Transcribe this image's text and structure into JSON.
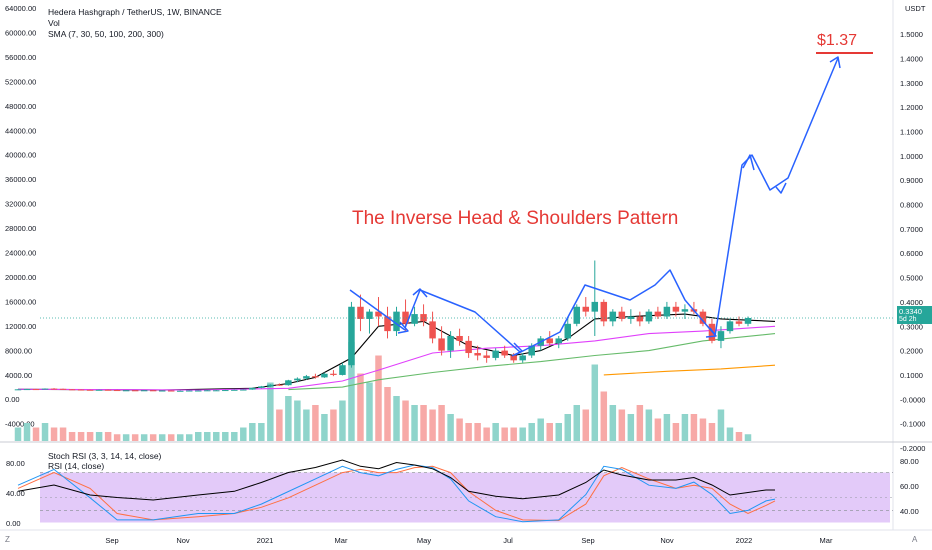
{
  "header": {
    "symbol_line": "Hedera Hashgraph / TetherUS, 1W, BINANCE",
    "volume_label": "Vol",
    "sma_label": "SMA (7, 30, 50, 100, 200, 300)",
    "stoch_label": "Stoch RSI (3, 3, 14, 14, close)",
    "rsi_label": "RSI (14, close)",
    "currency": "USDT"
  },
  "price_tag": {
    "value": "0.3340",
    "countdown": "5d 2h"
  },
  "annotations": {
    "pattern_title": "The Inverse Head & Shoulders Pattern",
    "target_label": "$1.37"
  },
  "footer": {
    "left_letter": "Z",
    "right_letter": "A"
  },
  "colors": {
    "up": "#26a69a",
    "down": "#ef5350",
    "annotation": "#e53935",
    "arrows": "#2962ff",
    "sma_black": "#000000",
    "sma_pink": "#e040fb",
    "sma_green": "#66bb6a",
    "sma_orange": "#ff9800",
    "rsi_band": "#d1a6f5",
    "stoch_k": "#2196f3",
    "stoch_d": "#ff7043"
  },
  "chart_data": {
    "type": "candlestick",
    "right_axis": {
      "scale": "linear",
      "ticks": [
        "1.5000",
        "1.4000",
        "1.3000",
        "1.2000",
        "1.1000",
        "1.0000",
        "0.9000",
        "0.8000",
        "0.7000",
        "0.6000",
        "0.5000",
        "0.4000",
        "0.3000",
        "0.2000",
        "0.1000",
        "-0.0000",
        "-0.1000",
        "-0.2000"
      ]
    },
    "left_axis_volume_ticks": [
      "64000.00",
      "60000.00",
      "56000.00",
      "52000.00",
      "48000.00",
      "44000.00",
      "40000.00",
      "36000.00",
      "32000.00",
      "28000.00",
      "24000.00",
      "20000.00",
      "16000.00",
      "12000.00",
      "8000.00",
      "4000.00",
      "0.00",
      "-4000.00"
    ],
    "x_ticks": [
      "Sep",
      "Nov",
      "2021",
      "Mar",
      "May",
      "Jul",
      "Sep",
      "Nov",
      "2022",
      "Mar"
    ],
    "candles": [
      [
        0.04,
        0.042,
        0.039,
        0.041
      ],
      [
        0.041,
        0.043,
        0.04,
        0.042
      ],
      [
        0.042,
        0.043,
        0.04,
        0.041
      ],
      [
        0.041,
        0.045,
        0.041,
        0.044
      ],
      [
        0.044,
        0.046,
        0.042,
        0.043
      ],
      [
        0.043,
        0.044,
        0.04,
        0.041
      ],
      [
        0.041,
        0.042,
        0.039,
        0.04
      ],
      [
        0.04,
        0.041,
        0.038,
        0.039
      ],
      [
        0.039,
        0.04,
        0.037,
        0.038
      ],
      [
        0.038,
        0.04,
        0.037,
        0.039
      ],
      [
        0.039,
        0.04,
        0.037,
        0.038
      ],
      [
        0.038,
        0.039,
        0.036,
        0.037
      ],
      [
        0.037,
        0.038,
        0.036,
        0.037
      ],
      [
        0.037,
        0.038,
        0.035,
        0.036
      ],
      [
        0.036,
        0.038,
        0.035,
        0.037
      ],
      [
        0.037,
        0.038,
        0.035,
        0.036
      ],
      [
        0.036,
        0.037,
        0.035,
        0.036
      ],
      [
        0.036,
        0.037,
        0.034,
        0.035
      ],
      [
        0.035,
        0.036,
        0.034,
        0.035
      ],
      [
        0.035,
        0.037,
        0.034,
        0.036
      ],
      [
        0.036,
        0.037,
        0.035,
        0.036
      ],
      [
        0.036,
        0.038,
        0.035,
        0.037
      ],
      [
        0.037,
        0.038,
        0.036,
        0.037
      ],
      [
        0.037,
        0.039,
        0.036,
        0.038
      ],
      [
        0.038,
        0.04,
        0.037,
        0.039
      ],
      [
        0.039,
        0.041,
        0.038,
        0.04
      ],
      [
        0.04,
        0.048,
        0.039,
        0.047
      ],
      [
        0.047,
        0.055,
        0.045,
        0.053
      ],
      [
        0.053,
        0.062,
        0.05,
        0.06
      ],
      [
        0.06,
        0.065,
        0.055,
        0.058
      ],
      [
        0.058,
        0.08,
        0.056,
        0.078
      ],
      [
        0.078,
        0.09,
        0.07,
        0.085
      ],
      [
        0.085,
        0.1,
        0.08,
        0.095
      ],
      [
        0.095,
        0.105,
        0.085,
        0.09
      ],
      [
        0.09,
        0.11,
        0.088,
        0.105
      ],
      [
        0.105,
        0.12,
        0.095,
        0.1
      ],
      [
        0.1,
        0.15,
        0.098,
        0.14
      ],
      [
        0.14,
        0.4,
        0.13,
        0.38
      ],
      [
        0.38,
        0.43,
        0.28,
        0.33
      ],
      [
        0.33,
        0.37,
        0.27,
        0.36
      ],
      [
        0.36,
        0.42,
        0.3,
        0.34
      ],
      [
        0.34,
        0.38,
        0.25,
        0.28
      ],
      [
        0.28,
        0.38,
        0.26,
        0.36
      ],
      [
        0.36,
        0.41,
        0.28,
        0.31
      ],
      [
        0.31,
        0.38,
        0.3,
        0.35
      ],
      [
        0.35,
        0.39,
        0.3,
        0.32
      ],
      [
        0.32,
        0.36,
        0.23,
        0.25
      ],
      [
        0.25,
        0.3,
        0.18,
        0.2
      ],
      [
        0.2,
        0.28,
        0.17,
        0.26
      ],
      [
        0.26,
        0.29,
        0.22,
        0.24
      ],
      [
        0.24,
        0.26,
        0.17,
        0.19
      ],
      [
        0.19,
        0.22,
        0.16,
        0.18
      ],
      [
        0.18,
        0.2,
        0.15,
        0.17
      ],
      [
        0.17,
        0.21,
        0.16,
        0.2
      ],
      [
        0.2,
        0.22,
        0.17,
        0.18
      ],
      [
        0.18,
        0.19,
        0.15,
        0.16
      ],
      [
        0.16,
        0.19,
        0.15,
        0.18
      ],
      [
        0.18,
        0.23,
        0.17,
        0.22
      ],
      [
        0.22,
        0.26,
        0.2,
        0.25
      ],
      [
        0.25,
        0.28,
        0.22,
        0.23
      ],
      [
        0.23,
        0.26,
        0.21,
        0.25
      ],
      [
        0.25,
        0.33,
        0.24,
        0.31
      ],
      [
        0.31,
        0.39,
        0.3,
        0.38
      ],
      [
        0.38,
        0.42,
        0.34,
        0.36
      ],
      [
        0.36,
        0.57,
        0.26,
        0.4
      ],
      [
        0.4,
        0.41,
        0.3,
        0.32
      ],
      [
        0.32,
        0.37,
        0.3,
        0.36
      ],
      [
        0.36,
        0.38,
        0.32,
        0.33
      ],
      [
        0.33,
        0.37,
        0.31,
        0.34
      ],
      [
        0.34,
        0.36,
        0.3,
        0.32
      ],
      [
        0.32,
        0.37,
        0.31,
        0.36
      ],
      [
        0.36,
        0.38,
        0.33,
        0.34
      ],
      [
        0.34,
        0.4,
        0.33,
        0.38
      ],
      [
        0.38,
        0.4,
        0.34,
        0.36
      ],
      [
        0.36,
        0.39,
        0.33,
        0.37
      ],
      [
        0.37,
        0.4,
        0.35,
        0.36
      ],
      [
        0.36,
        0.37,
        0.3,
        0.31
      ],
      [
        0.31,
        0.33,
        0.23,
        0.24
      ],
      [
        0.24,
        0.3,
        0.21,
        0.28
      ],
      [
        0.28,
        0.33,
        0.27,
        0.32
      ],
      [
        0.32,
        0.34,
        0.3,
        0.31
      ],
      [
        0.31,
        0.34,
        0.3,
        0.334
      ]
    ],
    "volume": [
      3,
      4,
      3,
      4,
      3,
      3,
      2,
      2,
      2,
      2,
      2,
      1.5,
      1.5,
      1.5,
      1.5,
      1.5,
      1.5,
      1.5,
      1.5,
      1.5,
      2,
      2,
      2,
      2,
      2,
      3,
      4,
      4,
      13,
      7,
      10,
      9,
      7,
      8,
      6,
      7,
      9,
      22,
      15,
      13,
      19,
      12,
      10,
      9,
      8,
      8,
      7,
      8,
      6,
      5,
      4,
      4,
      3,
      4,
      3,
      3,
      3,
      4,
      5,
      4,
      4,
      6,
      8,
      7,
      17,
      11,
      8,
      7,
      6,
      8,
      7,
      5,
      6,
      4,
      6,
      6,
      5,
      4,
      7,
      3,
      2,
      1.5
    ],
    "sma": {
      "black": [
        [
          0,
          0.041
        ],
        [
          16,
          0.038
        ],
        [
          26,
          0.045
        ],
        [
          30,
          0.065
        ],
        [
          33,
          0.09
        ],
        [
          37,
          0.17
        ],
        [
          40,
          0.3
        ],
        [
          45,
          0.32
        ],
        [
          50,
          0.22
        ],
        [
          55,
          0.18
        ],
        [
          58,
          0.2
        ],
        [
          61,
          0.25
        ],
        [
          64,
          0.33
        ],
        [
          68,
          0.34
        ],
        [
          74,
          0.35
        ],
        [
          78,
          0.33
        ],
        [
          84,
          0.32
        ]
      ],
      "pink": [
        [
          0,
          0.041
        ],
        [
          20,
          0.038
        ],
        [
          30,
          0.045
        ],
        [
          36,
          0.075
        ],
        [
          40,
          0.12
        ],
        [
          46,
          0.19
        ],
        [
          52,
          0.21
        ],
        [
          58,
          0.22
        ],
        [
          64,
          0.24
        ],
        [
          70,
          0.27
        ],
        [
          76,
          0.28
        ],
        [
          84,
          0.3
        ]
      ],
      "green": [
        [
          30,
          0.04
        ],
        [
          36,
          0.05
        ],
        [
          40,
          0.08
        ],
        [
          46,
          0.11
        ],
        [
          52,
          0.135
        ],
        [
          58,
          0.155
        ],
        [
          64,
          0.18
        ],
        [
          70,
          0.2
        ],
        [
          76,
          0.24
        ],
        [
          84,
          0.27
        ]
      ],
      "orange": [
        [
          65,
          0.1
        ],
        [
          72,
          0.115
        ],
        [
          78,
          0.125
        ],
        [
          84,
          0.14
        ]
      ]
    },
    "stoch_k": [
      [
        0,
        60
      ],
      [
        4,
        85
      ],
      [
        8,
        40
      ],
      [
        11,
        5
      ],
      [
        15,
        5
      ],
      [
        20,
        15
      ],
      [
        24,
        15
      ],
      [
        27,
        30
      ],
      [
        30,
        50
      ],
      [
        33,
        70
      ],
      [
        36,
        90
      ],
      [
        38,
        80
      ],
      [
        40,
        75
      ],
      [
        42,
        85
      ],
      [
        44,
        92
      ],
      [
        46,
        88
      ],
      [
        48,
        70
      ],
      [
        50,
        35
      ],
      [
        53,
        10
      ],
      [
        56,
        2
      ],
      [
        60,
        5
      ],
      [
        63,
        45
      ],
      [
        65,
        90
      ],
      [
        67,
        85
      ],
      [
        70,
        60
      ],
      [
        73,
        55
      ],
      [
        75,
        65
      ],
      [
        77,
        45
      ],
      [
        79,
        15
      ],
      [
        81,
        20
      ],
      [
        83,
        35
      ],
      [
        84,
        38
      ]
    ],
    "stoch_d": [
      [
        0,
        55
      ],
      [
        4,
        80
      ],
      [
        8,
        55
      ],
      [
        11,
        15
      ],
      [
        15,
        5
      ],
      [
        20,
        10
      ],
      [
        24,
        15
      ],
      [
        27,
        25
      ],
      [
        30,
        40
      ],
      [
        33,
        60
      ],
      [
        36,
        80
      ],
      [
        38,
        85
      ],
      [
        40,
        80
      ],
      [
        42,
        80
      ],
      [
        44,
        88
      ],
      [
        46,
        90
      ],
      [
        48,
        80
      ],
      [
        50,
        50
      ],
      [
        53,
        20
      ],
      [
        56,
        5
      ],
      [
        60,
        4
      ],
      [
        63,
        30
      ],
      [
        65,
        75
      ],
      [
        67,
        88
      ],
      [
        70,
        70
      ],
      [
        73,
        55
      ],
      [
        75,
        60
      ],
      [
        77,
        55
      ],
      [
        79,
        30
      ],
      [
        81,
        15
      ],
      [
        83,
        28
      ],
      [
        84,
        35
      ]
    ],
    "rsi": [
      [
        0,
        55
      ],
      [
        4,
        60
      ],
      [
        8,
        52
      ],
      [
        11,
        50
      ],
      [
        15,
        48
      ],
      [
        20,
        52
      ],
      [
        24,
        55
      ],
      [
        27,
        62
      ],
      [
        30,
        70
      ],
      [
        33,
        74
      ],
      [
        36,
        80
      ],
      [
        38,
        75
      ],
      [
        40,
        73
      ],
      [
        42,
        78
      ],
      [
        44,
        76
      ],
      [
        46,
        73
      ],
      [
        48,
        66
      ],
      [
        50,
        55
      ],
      [
        53,
        51
      ],
      [
        56,
        49
      ],
      [
        60,
        52
      ],
      [
        63,
        62
      ],
      [
        65,
        72
      ],
      [
        67,
        68
      ],
      [
        70,
        64
      ],
      [
        73,
        64
      ],
      [
        75,
        66
      ],
      [
        77,
        60
      ],
      [
        79,
        52
      ],
      [
        81,
        54
      ],
      [
        83,
        56
      ],
      [
        84,
        56
      ]
    ],
    "rsi_band": [
      30,
      70
    ],
    "rsi_axis_ticks": [
      "80.00",
      "60.00",
      "40.00"
    ],
    "stoch_axis_ticks": [
      "80.00",
      "40.00",
      "0.00"
    ]
  }
}
